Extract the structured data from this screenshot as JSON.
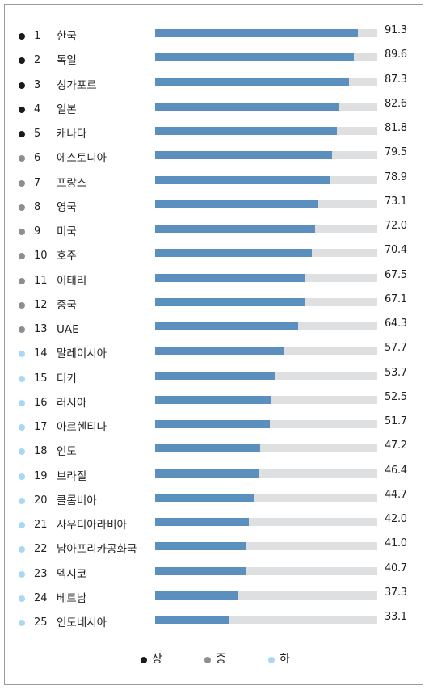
{
  "chart_data": {
    "type": "bar",
    "orientation": "horizontal",
    "xlim": [
      0,
      100
    ],
    "grid": false,
    "legend_position": "bottom-center",
    "categories": [
      "한국",
      "독일",
      "싱가포르",
      "일본",
      "캐나다",
      "에스토니아",
      "프랑스",
      "영국",
      "미국",
      "호주",
      "이태리",
      "중국",
      "UAE",
      "말레이시아",
      "터키",
      "러시아",
      "아르헨티나",
      "인도",
      "브라질",
      "콜롬비아",
      "사우디아라비아",
      "남아프리카공화국",
      "멕시코",
      "베트남",
      "인도네시아"
    ],
    "ranks": [
      "1",
      "2",
      "3",
      "4",
      "5",
      "6",
      "7",
      "8",
      "9",
      "10",
      "11",
      "12",
      "13",
      "14",
      "15",
      "16",
      "17",
      "18",
      "19",
      "20",
      "21",
      "22",
      "23",
      "24",
      "25"
    ],
    "values": [
      91.3,
      89.6,
      87.3,
      82.6,
      81.8,
      79.5,
      78.9,
      73.1,
      72.0,
      70.4,
      67.5,
      67.1,
      64.3,
      57.7,
      53.7,
      52.5,
      51.7,
      47.2,
      46.4,
      44.7,
      42.0,
      41.0,
      40.7,
      37.3,
      33.1
    ],
    "value_labels": [
      "91.3",
      "89.6",
      "87.3",
      "82.6",
      "81.8",
      "79.5",
      "78.9",
      "73.1",
      "72.0",
      "70.4",
      "67.5",
      "67.1",
      "64.3",
      "57.7",
      "53.7",
      "52.5",
      "51.7",
      "47.2",
      "46.4",
      "44.7",
      "42.0",
      "41.0",
      "40.7",
      "37.3",
      "33.1"
    ],
    "tiers": [
      "상",
      "상",
      "상",
      "상",
      "상",
      "중",
      "중",
      "중",
      "중",
      "중",
      "중",
      "중",
      "중",
      "하",
      "하",
      "하",
      "하",
      "하",
      "하",
      "하",
      "하",
      "하",
      "하",
      "하",
      "하"
    ],
    "legend": [
      {
        "label": "상",
        "color": "#1a1a1a"
      },
      {
        "label": "중",
        "color": "#8e8e8e"
      },
      {
        "label": "하",
        "color": "#a9d9f2"
      }
    ],
    "bar_color": "#5b8fbe",
    "track_color": "#dedfe1"
  }
}
